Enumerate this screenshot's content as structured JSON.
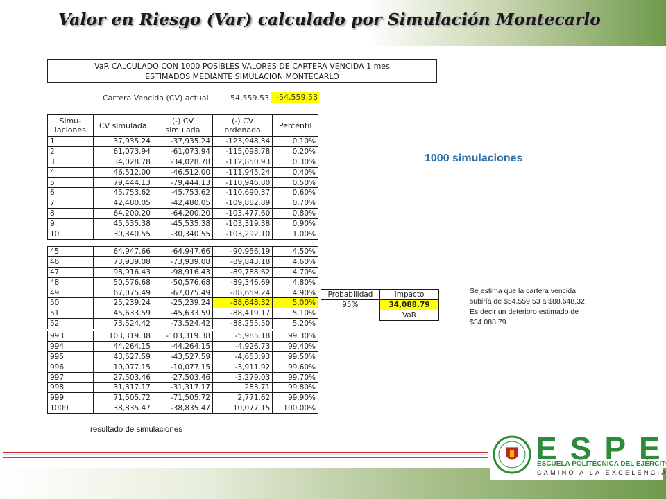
{
  "slide": {
    "title": "Valor en Riesgo (Var) calculado por Simulación Montecarlo",
    "banner_line1": "VaR CALCULADO CON 1000 POSIBLES VALORES DE CARTERA VENCIDA 1 mes",
    "banner_line2": "ESTIMADOS MEDIANTE SIMULACION MONTECARLO",
    "cv_label": "Cartera Vencida (CV) actual",
    "cv_value": "54,559.53",
    "cv_negative": "-54,559.53",
    "simulations_label": "1000 simulaciones",
    "caption": "resultado de simulaciones"
  },
  "table": {
    "headers": {
      "sim": "Simu- laciones",
      "cv": "CV simulada",
      "neg": "(-) CV simulada",
      "ord": "(-) CV ordenada",
      "pct": "Percentil"
    },
    "group1": [
      [
        "1",
        "37,935.24",
        "-37,935.24",
        "-123,948.34",
        "0.10%"
      ],
      [
        "2",
        "61,073.94",
        "-61,073.94",
        "-115,098.78",
        "0.20%"
      ],
      [
        "3",
        "34,028.78",
        "-34,028.78",
        "-112,850.93",
        "0.30%"
      ],
      [
        "4",
        "46,512.00",
        "-46,512.00",
        "-111,945.24",
        "0.40%"
      ],
      [
        "5",
        "79,444.13",
        "-79,444.13",
        "-110,946.80",
        "0.50%"
      ],
      [
        "6",
        "45,753.62",
        "-45,753.62",
        "-110,690.37",
        "0.60%"
      ],
      [
        "7",
        "42,480.05",
        "-42,480.05",
        "-109,882.89",
        "0.70%"
      ],
      [
        "8",
        "64,200.20",
        "-64,200.20",
        "-103,477.60",
        "0.80%"
      ],
      [
        "9",
        "45,535.38",
        "-45,535.38",
        "-103,319.38",
        "0.90%"
      ],
      [
        "10",
        "30,340.55",
        "-30,340.55",
        "-103,292.10",
        "1.00%"
      ]
    ],
    "group2": [
      [
        "45",
        "64,947.66",
        "-64,947.66",
        "-90,956.19",
        "4.50%"
      ],
      [
        "46",
        "73,939.08",
        "-73,939.08",
        "-89,843.18",
        "4.60%"
      ],
      [
        "47",
        "98,916.43",
        "-98,916.43",
        "-89,788.62",
        "4.70%"
      ],
      [
        "48",
        "50,576.68",
        "-50,576.68",
        "-89,346.69",
        "4.80%"
      ],
      [
        "49",
        "67,075.49",
        "-67,075.49",
        "-88,659.24",
        "4.90%"
      ],
      [
        "50",
        "25,239.24",
        "-25,239.24",
        "-88,648.32",
        "5.00%"
      ],
      [
        "51",
        "45,633.59",
        "-45,633.59",
        "-88,419.17",
        "5.10%"
      ],
      [
        "52",
        "73,524.42",
        "-73,524.42",
        "-88,255.50",
        "5.20%"
      ]
    ],
    "group3": [
      [
        "993",
        "103,319.38",
        "-103,319.38",
        "-5,985.18",
        "99.30%"
      ],
      [
        "994",
        "44,264.15",
        "-44,264.15",
        "-4,926.73",
        "99.40%"
      ],
      [
        "995",
        "43,527.59",
        "-43,527.59",
        "-4,653.93",
        "99.50%"
      ],
      [
        "996",
        "10,077.15",
        "-10,077.15",
        "-3,911.92",
        "99.60%"
      ],
      [
        "997",
        "27,503.46",
        "-27,503.46",
        "-3,279.03",
        "99.70%"
      ],
      [
        "998",
        "31,317.17",
        "-31,317.17",
        "283.71",
        "99.80%"
      ],
      [
        "999",
        "71,505.72",
        "-71,505.72",
        "2,771.62",
        "99.90%"
      ],
      [
        "1000",
        "38,835.47",
        "-38,835.47",
        "10,077.15",
        "100.00%"
      ]
    ]
  },
  "var_box": {
    "prob_header": "Probabilidad",
    "impact_header": "Impacto",
    "prob_value": "95%",
    "impact_value": "34,088.79",
    "var_label": "VaR"
  },
  "note": {
    "line1": "Se estima que la cartera vencida",
    "line2": "subiría de $54.559,53  a  $88.648,32",
    "line3": "Es decir un deterioro estimado de",
    "line4": "$34.088,79"
  },
  "logo": {
    "word": "ESPE",
    "subtitle1": "ESCUELA POLITÉCNICA DEL EJÉRCITO",
    "subtitle2": "CAMINO A LA EXCELENCIA"
  },
  "colors": {
    "highlight": "#ffff00",
    "accent_blue": "#2a6ea6",
    "brand_green": "#2e8b3a",
    "stripe_red": "#c0282d",
    "stripe_green": "#2e8b3a"
  }
}
